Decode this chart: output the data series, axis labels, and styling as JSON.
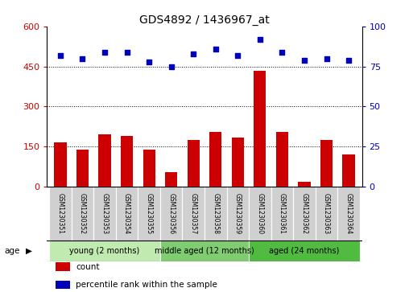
{
  "title": "GDS4892 / 1436967_at",
  "samples": [
    "GSM1230351",
    "GSM1230352",
    "GSM1230353",
    "GSM1230354",
    "GSM1230355",
    "GSM1230356",
    "GSM1230357",
    "GSM1230358",
    "GSM1230359",
    "GSM1230360",
    "GSM1230361",
    "GSM1230362",
    "GSM1230363",
    "GSM1230364"
  ],
  "counts": [
    165,
    140,
    195,
    190,
    140,
    55,
    175,
    205,
    185,
    435,
    205,
    20,
    175,
    120
  ],
  "percentiles": [
    82,
    80,
    84,
    84,
    78,
    75,
    83,
    86,
    82,
    92,
    84,
    79,
    80,
    79
  ],
  "groups": [
    {
      "label": "young (2 months)",
      "start": 0,
      "end": 5,
      "color": "#c0eab0"
    },
    {
      "label": "middle aged (12 months)",
      "start": 5,
      "end": 9,
      "color": "#80cc70"
    },
    {
      "label": "aged (24 months)",
      "start": 9,
      "end": 14,
      "color": "#50bb40"
    }
  ],
  "bar_color": "#CC0000",
  "dot_color": "#0000BB",
  "left_axis_color": "#CC0000",
  "right_axis_color": "#0000BB",
  "ylim_left": [
    0,
    600
  ],
  "ylim_right": [
    0,
    100
  ],
  "yticks_left": [
    0,
    150,
    300,
    450,
    600
  ],
  "yticks_right": [
    0,
    25,
    50,
    75,
    100
  ],
  "hlines": [
    150,
    300,
    450
  ],
  "sample_box_color": "#d0d0d0",
  "background_color": "#ffffff",
  "age_label": "age",
  "legend_count": "count",
  "legend_percentile": "percentile rank within the sample"
}
